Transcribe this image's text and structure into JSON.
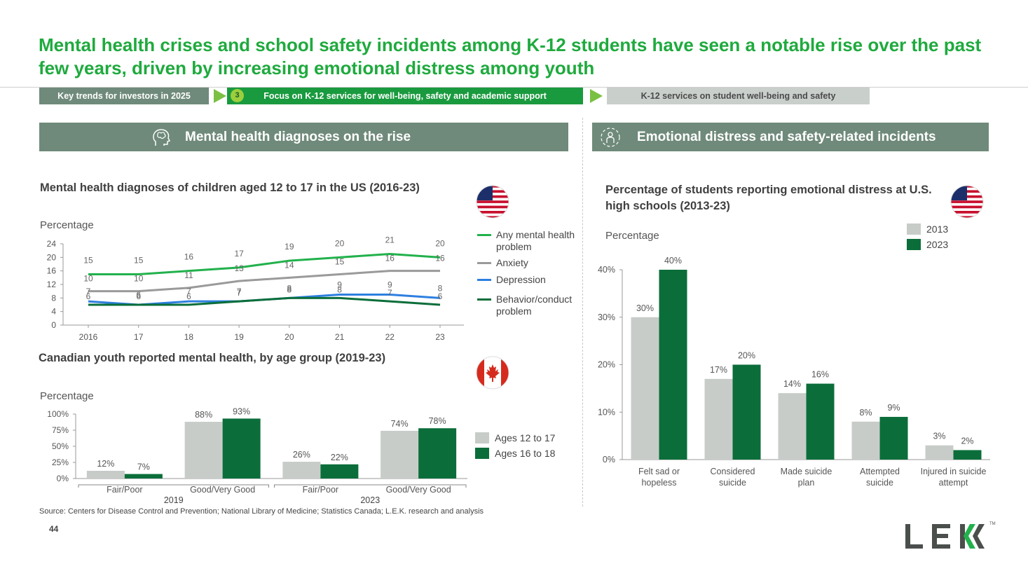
{
  "title": "Mental health crises and school safety incidents among K-12 students have seen a notable rise over the past few years, driven by increasing emotional distress among youth",
  "breadcrumb": {
    "step1": "Key trends for investors in 2025",
    "step2_num": "3",
    "step2": "Focus on K-12 services for well-being, safety and academic support",
    "step3": "K-12 services on student well-being and safety"
  },
  "colors": {
    "green_title": "#1faa3e",
    "panel": "#6f8a7a",
    "dark_green": "#0b6e3a",
    "light_gray": "#c8ccc9",
    "bright_green": "#22b14c",
    "gray_line": "#9a9a9a",
    "blue_line": "#2e7fe0"
  },
  "left_panel": {
    "title": "Mental health diagnoses on the rise",
    "icon": "brain-head-icon"
  },
  "right_panel": {
    "title": "Emotional distress and safety-related incidents",
    "icon": "person-target-icon"
  },
  "chart_data": [
    {
      "type": "line",
      "title": "Mental health diagnoses of children aged 12 to 17 in the US (2016-23)",
      "ylabel": "Percentage",
      "x": [
        "2016",
        "17",
        "18",
        "19",
        "20",
        "21",
        "22",
        "23"
      ],
      "yticks": [
        "0",
        "4",
        "8",
        "12",
        "16",
        "20",
        "24"
      ],
      "ylim": [
        0,
        24
      ],
      "flag": "us-flag-icon",
      "series": [
        {
          "name": "Any mental health problem",
          "values": [
            15,
            15,
            16,
            17,
            19,
            20,
            21,
            20
          ],
          "labels": [
            "15",
            "15",
            "16",
            "17",
            "19",
            "20",
            "21",
            "20"
          ],
          "color": "#22b14c"
        },
        {
          "name": "Anxiety",
          "values": [
            10,
            10,
            11,
            13,
            14,
            15,
            16,
            16
          ],
          "labels": [
            "10",
            "10",
            "11",
            "13",
            "14",
            "15",
            "16",
            "16"
          ],
          "color": "#9a9a9a"
        },
        {
          "name": "Depression",
          "values": [
            7,
            6,
            7,
            7,
            8,
            9,
            9,
            8
          ],
          "labels": [
            "7",
            "6",
            "7",
            "7",
            "8",
            "9",
            "9",
            "8"
          ],
          "color": "#2e7fe0"
        },
        {
          "name": "Behavior/conduct problem",
          "values": [
            6,
            6,
            6,
            7,
            8,
            8,
            7,
            6
          ],
          "labels": [
            "6",
            "6",
            "6",
            "7",
            "8",
            "8",
            "7",
            "6"
          ],
          "color": "#0b6e3a"
        }
      ]
    },
    {
      "type": "bar",
      "title": "Canadian youth reported mental health, by age group (2019-23)",
      "ylabel": "Percentage",
      "categories": [
        "Fair/Poor",
        "Good/Very Good",
        "Fair/Poor",
        "Good/Very Good"
      ],
      "groups": [
        "2019",
        "2023"
      ],
      "yticks": [
        "0%",
        "25%",
        "50%",
        "75%",
        "100%"
      ],
      "ylim": [
        0,
        100
      ],
      "flag": "canada-flag-icon",
      "series": [
        {
          "name": "Ages 12 to 17",
          "values": [
            12,
            88,
            26,
            74
          ],
          "labels": [
            "12%",
            "88%",
            "26%",
            "74%"
          ],
          "color": "#c8ccc9"
        },
        {
          "name": "Ages 16 to 18",
          "values": [
            7,
            93,
            22,
            78
          ],
          "labels": [
            "7%",
            "93%",
            "22%",
            "78%"
          ],
          "color": "#0b6e3a"
        }
      ]
    },
    {
      "type": "bar",
      "title": "Percentage of students reporting emotional distress at U.S. high schools (2013-23)",
      "ylabel": "Percentage",
      "categories": [
        "Felt sad or hopeless",
        "Considered suicide",
        "Made suicide plan",
        "Attempted suicide",
        "Injured in suicide attempt"
      ],
      "yticks": [
        "0%",
        "10%",
        "20%",
        "30%",
        "40%"
      ],
      "ylim": [
        0,
        40
      ],
      "flag": "us-flag-icon",
      "series": [
        {
          "name": "2013",
          "values": [
            30,
            17,
            14,
            8,
            3
          ],
          "labels": [
            "30%",
            "17%",
            "14%",
            "8%",
            "3%"
          ],
          "color": "#c8ccc9"
        },
        {
          "name": "2023",
          "values": [
            40,
            20,
            16,
            9,
            2
          ],
          "labels": [
            "40%",
            "20%",
            "16%",
            "9%",
            "2%"
          ],
          "color": "#0b6e3a"
        }
      ]
    }
  ],
  "footer": {
    "source": "Source: Centers for Disease Control and Prevention; National Library of Medicine; Statistics Canada; L.E.K. research and analysis",
    "page": "44",
    "logo": "LEK",
    "tm": "TM"
  }
}
